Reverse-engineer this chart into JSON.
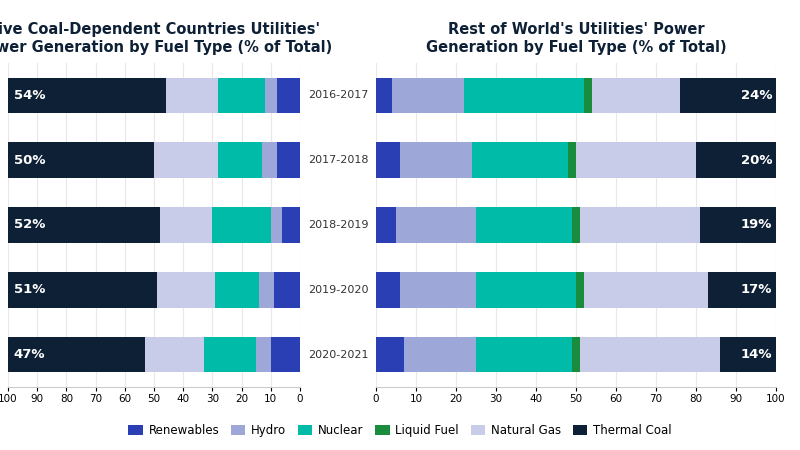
{
  "years": [
    "2016-2017",
    "2017-2018",
    "2018-2019",
    "2019-2020",
    "2020-2021"
  ],
  "left_title": "Five Coal-Dependent Countries Utilities'\nPower Generation by Fuel Type (% of Total)",
  "right_title": "Rest of World's Utilities' Power\nGeneration by Fuel Type (% of Total)",
  "left_labels": [
    "54%",
    "50%",
    "52%",
    "51%",
    "47%"
  ],
  "right_labels": [
    "24%",
    "20%",
    "19%",
    "17%",
    "14%"
  ],
  "left_data": {
    "Thermal Coal": [
      54,
      50,
      52,
      51,
      47
    ],
    "Natural Gas": [
      18,
      22,
      18,
      20,
      20
    ],
    "Nuclear": [
      16,
      15,
      20,
      15,
      18
    ],
    "Hydro": [
      4,
      5,
      4,
      5,
      5
    ],
    "Renewables": [
      8,
      8,
      6,
      9,
      10
    ]
  },
  "right_data": {
    "Renewables": [
      4,
      6,
      5,
      6,
      7
    ],
    "Hydro": [
      18,
      18,
      20,
      19,
      18
    ],
    "Nuclear": [
      30,
      24,
      24,
      25,
      24
    ],
    "Liquid Fuel": [
      2,
      2,
      2,
      2,
      2
    ],
    "Natural Gas": [
      22,
      30,
      30,
      31,
      35
    ],
    "Thermal Coal": [
      24,
      20,
      19,
      17,
      14
    ]
  },
  "colors": {
    "Renewables": "#2B3FB5",
    "Hydro": "#9DA8D8",
    "Nuclear": "#00BBA7",
    "Liquid Fuel": "#1A8C3E",
    "Natural Gas": "#C8CCE8",
    "Thermal Coal": "#0D2035"
  },
  "background_color": "#FFFFFF",
  "bar_height": 0.55,
  "fontsize_title": 10.5
}
